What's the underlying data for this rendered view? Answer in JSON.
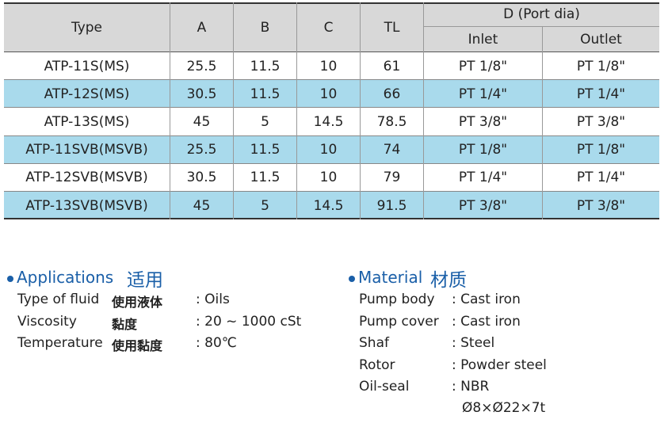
{
  "table": {
    "header": {
      "type": "Type",
      "a": "A",
      "b": "B",
      "c": "C",
      "tl": "TL",
      "port": "D (Port dia)",
      "inlet": "Inlet",
      "outlet": "Outlet"
    },
    "rows": [
      [
        "ATP-11S(MS)",
        "25.5",
        "11.5",
        "10",
        "61",
        "PT 1/8\"",
        "PT 1/8\""
      ],
      [
        "ATP-12S(MS)",
        "30.5",
        "11.5",
        "10",
        "66",
        "PT 1/4\"",
        "PT 1/4\""
      ],
      [
        "ATP-13S(MS)",
        "45",
        "5",
        "14.5",
        "78.5",
        "PT 3/8\"",
        "PT 3/8\""
      ],
      [
        "ATP-11SVB(MSVB)",
        "25.5",
        "11.5",
        "10",
        "74",
        "PT 1/8\"",
        "PT 1/8\""
      ],
      [
        "ATP-12SVB(MSVB)",
        "30.5",
        "11.5",
        "10",
        "79",
        "PT 1/4\"",
        "PT 1/4\""
      ],
      [
        "ATP-13SVB(MSVB)",
        "45",
        "5",
        "14.5",
        "91.5",
        "PT 3/8\"",
        "PT 3/8\""
      ]
    ]
  },
  "applications": {
    "title": "Applications",
    "title_cjk": "适用",
    "items": [
      {
        "label": "Type of fluid",
        "cjk": "使用液体",
        "value": ": Oils"
      },
      {
        "label": "Viscosity",
        "cjk": "黏度",
        "value": ": 20 ~ 1000 cSt"
      },
      {
        "label": "Temperature",
        "cjk": "使用黏度",
        "value": ": 80℃"
      }
    ]
  },
  "material": {
    "title": "Material",
    "title_cjk": "材质",
    "items": [
      {
        "label": "Pump body",
        "value": ": Cast iron"
      },
      {
        "label": "Pump cover",
        "value": ": Cast iron"
      },
      {
        "label": "Shaf",
        "value": ": Steel"
      },
      {
        "label": "Rotor",
        "value": ": Powder steel"
      },
      {
        "label": "Oil-seal",
        "value": ": NBR"
      }
    ],
    "note": "Ø8×Ø22×7t"
  }
}
